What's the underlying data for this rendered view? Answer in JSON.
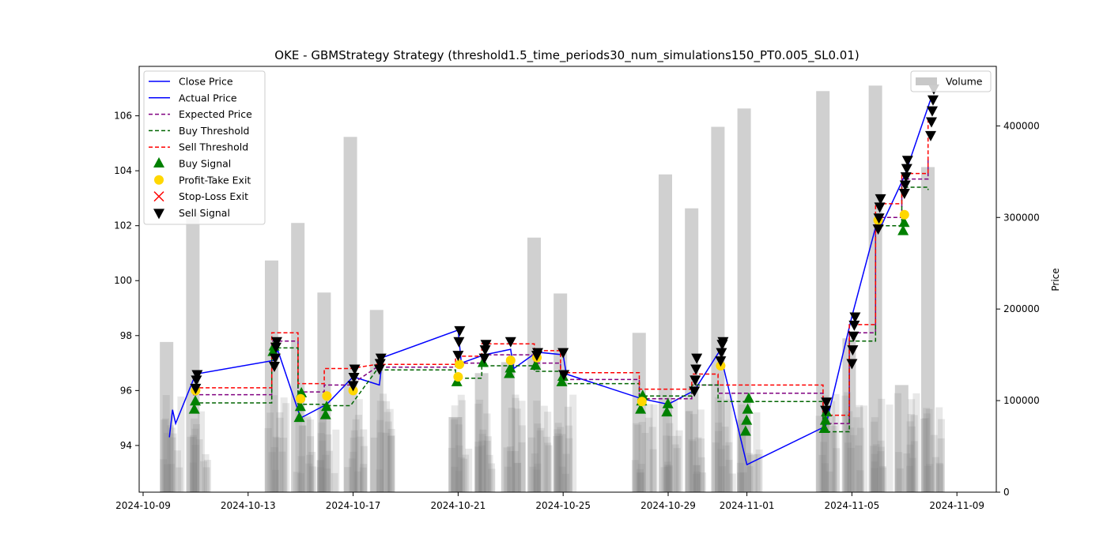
{
  "chart_data": {
    "type": "line",
    "title": "OKE - GBMStrategy Strategy (threshold1.5_time_periods30_num_simulations150_PT0.005_SL0.01)",
    "xlabel": "",
    "ylabel_left": "",
    "ylabel_right": "Price",
    "x_ticks": [
      "2024-10-09",
      "2024-10-13",
      "2024-10-17",
      "2024-10-21",
      "2024-10-25",
      "2024-10-29",
      "2024-11-01",
      "2024-11-05",
      "2024-11-09"
    ],
    "y_ticks_left": [
      "94",
      "96",
      "98",
      "100",
      "102",
      "104",
      "106"
    ],
    "y_ticks_right": [
      "0",
      "100000",
      "200000",
      "300000",
      "400000"
    ],
    "ylim_left": [
      92.3,
      107.8
    ],
    "ylim_right": [
      0,
      465000
    ],
    "xlim_days": [
      -0.15,
      32.5
    ],
    "legend_left": [
      "Close Price",
      "Actual Price",
      "Expected Price",
      "Buy Threshold",
      "Sell Threshold",
      "Buy Signal",
      "Profit-Take Exit",
      "Stop-Loss Exit",
      "Sell Signal"
    ],
    "legend_right": [
      "Volume"
    ],
    "legend_left_position": "top-left",
    "legend_right_position": "top-right",
    "grid": false,
    "colors": {
      "close": "#0000ff",
      "expected": "#800080",
      "buy_threshold": "#006400",
      "sell_threshold": "#ff0000",
      "buy_signal": "#008000",
      "profit_take": "#ffd700",
      "stop_loss": "#ff0000",
      "sell_signal": "#000000",
      "volume": "#c8c8c8",
      "volume_dense": "#808080"
    },
    "trading_days": [
      "2024-10-10",
      "2024-10-11",
      "2024-10-14",
      "2024-10-15",
      "2024-10-16",
      "2024-10-17",
      "2024-10-18",
      "2024-10-21",
      "2024-10-22",
      "2024-10-23",
      "2024-10-24",
      "2024-10-25",
      "2024-10-28",
      "2024-10-29",
      "2024-10-30",
      "2024-10-31",
      "2024-11-01",
      "2024-11-04",
      "2024-11-05",
      "2024-11-06",
      "2024-11-07",
      "2024-11-08"
    ],
    "close_price": [
      {
        "x": "2024-10-10",
        "y": 94.3
      },
      {
        "x": "2024-10-10",
        "y": 95.3
      },
      {
        "x": "2024-10-10",
        "y": 94.8
      },
      {
        "x": "2024-10-11",
        "y": 96.6
      },
      {
        "x": "2024-10-14",
        "y": 97.1
      },
      {
        "x": "2024-10-14",
        "y": 97.5
      },
      {
        "x": "2024-10-15",
        "y": 95.0
      },
      {
        "x": "2024-10-16",
        "y": 95.5
      },
      {
        "x": "2024-10-17",
        "y": 96.5
      },
      {
        "x": "2024-10-18",
        "y": 96.2
      },
      {
        "x": "2024-10-18",
        "y": 97.2
      },
      {
        "x": "2024-10-21",
        "y": 98.2
      },
      {
        "x": "2024-10-21",
        "y": 97.0
      },
      {
        "x": "2024-10-22",
        "y": 97.3
      },
      {
        "x": "2024-10-23",
        "y": 97.5
      },
      {
        "x": "2024-10-23",
        "y": 96.8
      },
      {
        "x": "2024-10-24",
        "y": 97.4
      },
      {
        "x": "2024-10-25",
        "y": 97.3
      },
      {
        "x": "2024-10-25",
        "y": 96.6
      },
      {
        "x": "2024-10-28",
        "y": 95.7
      },
      {
        "x": "2024-10-29",
        "y": 95.5
      },
      {
        "x": "2024-10-30",
        "y": 96.0
      },
      {
        "x": "2024-10-31",
        "y": 97.5
      },
      {
        "x": "2024-10-31",
        "y": 96.8
      },
      {
        "x": "2024-11-01",
        "y": 93.3
      },
      {
        "x": "2024-11-04",
        "y": 94.7
      },
      {
        "x": "2024-11-05",
        "y": 98.7
      },
      {
        "x": "2024-11-06",
        "y": 102.3
      },
      {
        "x": "2024-11-06",
        "y": 102.0
      },
      {
        "x": "2024-11-07",
        "y": 103.8
      },
      {
        "x": "2024-11-08",
        "y": 106.6
      }
    ],
    "expected_price": [
      {
        "x": "2024-10-11",
        "y": 95.85
      },
      {
        "x": "2024-10-14",
        "y": 95.85
      },
      {
        "x": "2024-10-14",
        "y": 97.8
      },
      {
        "x": "2024-10-15",
        "y": 97.8
      },
      {
        "x": "2024-10-15",
        "y": 95.95
      },
      {
        "x": "2024-10-16",
        "y": 95.95
      },
      {
        "x": "2024-10-16",
        "y": 96.2
      },
      {
        "x": "2024-10-17",
        "y": 96.2
      },
      {
        "x": "2024-10-18",
        "y": 96.85
      },
      {
        "x": "2024-10-21",
        "y": 96.85
      },
      {
        "x": "2024-10-21",
        "y": 97.0
      },
      {
        "x": "2024-10-22",
        "y": 97.0
      },
      {
        "x": "2024-10-22",
        "y": 97.3
      },
      {
        "x": "2024-10-24",
        "y": 97.3
      },
      {
        "x": "2024-10-24",
        "y": 97.0
      },
      {
        "x": "2024-10-25",
        "y": 97.0
      },
      {
        "x": "2024-10-25",
        "y": 96.4
      },
      {
        "x": "2024-10-28",
        "y": 96.4
      },
      {
        "x": "2024-10-28",
        "y": 95.7
      },
      {
        "x": "2024-10-30",
        "y": 95.7
      },
      {
        "x": "2024-10-30",
        "y": 96.2
      },
      {
        "x": "2024-10-31",
        "y": 96.2
      },
      {
        "x": "2024-10-31",
        "y": 95.9
      },
      {
        "x": "2024-11-04",
        "y": 95.9
      },
      {
        "x": "2024-11-04",
        "y": 94.8
      },
      {
        "x": "2024-11-05",
        "y": 94.8
      },
      {
        "x": "2024-11-05",
        "y": 98.1
      },
      {
        "x": "2024-11-06",
        "y": 98.1
      },
      {
        "x": "2024-11-06",
        "y": 102.3
      },
      {
        "x": "2024-11-07",
        "y": 102.3
      },
      {
        "x": "2024-11-07",
        "y": 103.7
      },
      {
        "x": "2024-11-08",
        "y": 103.7
      },
      {
        "x": "2024-11-08",
        "y": 104.5
      }
    ],
    "buy_threshold": [
      {
        "x": "2024-10-11",
        "y": 95.55
      },
      {
        "x": "2024-10-14",
        "y": 95.55
      },
      {
        "x": "2024-10-14",
        "y": 97.55
      },
      {
        "x": "2024-10-15",
        "y": 97.55
      },
      {
        "x": "2024-10-15",
        "y": 95.5
      },
      {
        "x": "2024-10-16",
        "y": 95.5
      },
      {
        "x": "2024-10-16",
        "y": 95.45
      },
      {
        "x": "2024-10-17",
        "y": 95.45
      },
      {
        "x": "2024-10-18",
        "y": 96.75
      },
      {
        "x": "2024-10-21",
        "y": 96.75
      },
      {
        "x": "2024-10-21",
        "y": 96.45
      },
      {
        "x": "2024-10-22",
        "y": 96.45
      },
      {
        "x": "2024-10-22",
        "y": 96.9
      },
      {
        "x": "2024-10-24",
        "y": 96.9
      },
      {
        "x": "2024-10-24",
        "y": 96.7
      },
      {
        "x": "2024-10-25",
        "y": 96.7
      },
      {
        "x": "2024-10-25",
        "y": 96.25
      },
      {
        "x": "2024-10-28",
        "y": 96.25
      },
      {
        "x": "2024-10-28",
        "y": 95.8
      },
      {
        "x": "2024-10-30",
        "y": 95.8
      },
      {
        "x": "2024-10-30",
        "y": 96.2
      },
      {
        "x": "2024-10-31",
        "y": 96.2
      },
      {
        "x": "2024-10-31",
        "y": 95.6
      },
      {
        "x": "2024-11-04",
        "y": 95.6
      },
      {
        "x": "2024-11-04",
        "y": 94.5
      },
      {
        "x": "2024-11-05",
        "y": 94.5
      },
      {
        "x": "2024-11-05",
        "y": 97.8
      },
      {
        "x": "2024-11-06",
        "y": 97.8
      },
      {
        "x": "2024-11-06",
        "y": 102.0
      },
      {
        "x": "2024-11-07",
        "y": 102.0
      },
      {
        "x": "2024-11-07",
        "y": 103.4
      },
      {
        "x": "2024-11-08",
        "y": 103.4
      },
      {
        "x": "2024-11-08",
        "y": 103.3
      }
    ],
    "sell_threshold": [
      {
        "x": "2024-10-11",
        "y": 96.1
      },
      {
        "x": "2024-10-14",
        "y": 96.1
      },
      {
        "x": "2024-10-14",
        "y": 98.1
      },
      {
        "x": "2024-10-15",
        "y": 98.1
      },
      {
        "x": "2024-10-15",
        "y": 96.25
      },
      {
        "x": "2024-10-16",
        "y": 96.25
      },
      {
        "x": "2024-10-16",
        "y": 96.8
      },
      {
        "x": "2024-10-17",
        "y": 96.8
      },
      {
        "x": "2024-10-18",
        "y": 96.95
      },
      {
        "x": "2024-10-21",
        "y": 96.95
      },
      {
        "x": "2024-10-21",
        "y": 97.25
      },
      {
        "x": "2024-10-22",
        "y": 97.25
      },
      {
        "x": "2024-10-22",
        "y": 97.7
      },
      {
        "x": "2024-10-24",
        "y": 97.7
      },
      {
        "x": "2024-10-24",
        "y": 97.45
      },
      {
        "x": "2024-10-25",
        "y": 97.45
      },
      {
        "x": "2024-10-25",
        "y": 96.65
      },
      {
        "x": "2024-10-28",
        "y": 96.65
      },
      {
        "x": "2024-10-28",
        "y": 96.05
      },
      {
        "x": "2024-10-30",
        "y": 96.05
      },
      {
        "x": "2024-10-30",
        "y": 96.6
      },
      {
        "x": "2024-10-31",
        "y": 96.6
      },
      {
        "x": "2024-10-31",
        "y": 96.2
      },
      {
        "x": "2024-11-04",
        "y": 96.2
      },
      {
        "x": "2024-11-04",
        "y": 95.1
      },
      {
        "x": "2024-11-05",
        "y": 95.1
      },
      {
        "x": "2024-11-05",
        "y": 98.4
      },
      {
        "x": "2024-11-06",
        "y": 98.4
      },
      {
        "x": "2024-11-06",
        "y": 102.8
      },
      {
        "x": "2024-11-07",
        "y": 102.8
      },
      {
        "x": "2024-11-07",
        "y": 103.9
      },
      {
        "x": "2024-11-08",
        "y": 103.9
      },
      {
        "x": "2024-11-08",
        "y": 105.9
      }
    ],
    "buy_signals": [
      {
        "x": "2024-10-11",
        "y": 95.3
      },
      {
        "x": "2024-10-11",
        "y": 95.6
      },
      {
        "x": "2024-10-14",
        "y": 97.4
      },
      {
        "x": "2024-10-14",
        "y": 97.6
      },
      {
        "x": "2024-10-15",
        "y": 95.0
      },
      {
        "x": "2024-10-15",
        "y": 95.4
      },
      {
        "x": "2024-10-15",
        "y": 95.9
      },
      {
        "x": "2024-10-16",
        "y": 95.1
      },
      {
        "x": "2024-10-16",
        "y": 95.4
      },
      {
        "x": "2024-10-21",
        "y": 96.3
      },
      {
        "x": "2024-10-22",
        "y": 97.0
      },
      {
        "x": "2024-10-23",
        "y": 96.6
      },
      {
        "x": "2024-10-23",
        "y": 96.8
      },
      {
        "x": "2024-10-24",
        "y": 96.9
      },
      {
        "x": "2024-10-25",
        "y": 96.3
      },
      {
        "x": "2024-10-25",
        "y": 96.5
      },
      {
        "x": "2024-10-28",
        "y": 95.3
      },
      {
        "x": "2024-10-28",
        "y": 95.6
      },
      {
        "x": "2024-10-28",
        "y": 95.8
      },
      {
        "x": "2024-10-29",
        "y": 95.2
      },
      {
        "x": "2024-10-29",
        "y": 95.5
      },
      {
        "x": "2024-11-01",
        "y": 94.5
      },
      {
        "x": "2024-11-01",
        "y": 94.9
      },
      {
        "x": "2024-11-01",
        "y": 95.3
      },
      {
        "x": "2024-11-01",
        "y": 95.7
      },
      {
        "x": "2024-11-04",
        "y": 94.6
      },
      {
        "x": "2024-11-04",
        "y": 94.9
      },
      {
        "x": "2024-11-04",
        "y": 95.2
      },
      {
        "x": "2024-11-07",
        "y": 101.8
      },
      {
        "x": "2024-11-07",
        "y": 102.1
      }
    ],
    "profit_take_exits": [
      {
        "x": "2024-10-11",
        "y": 96.0
      },
      {
        "x": "2024-10-15",
        "y": 95.7
      },
      {
        "x": "2024-10-16",
        "y": 95.8
      },
      {
        "x": "2024-10-17",
        "y": 96.0
      },
      {
        "x": "2024-10-21",
        "y": 96.5
      },
      {
        "x": "2024-10-21",
        "y": 96.95
      },
      {
        "x": "2024-10-23",
        "y": 97.1
      },
      {
        "x": "2024-10-24",
        "y": 97.2
      },
      {
        "x": "2024-10-28",
        "y": 95.6
      },
      {
        "x": "2024-10-31",
        "y": 96.9
      },
      {
        "x": "2024-11-06",
        "y": 102.2
      },
      {
        "x": "2024-11-07",
        "y": 102.4
      }
    ],
    "stop_loss_exits": [],
    "sell_signals": [
      {
        "x": "2024-10-11",
        "y": 96.1
      },
      {
        "x": "2024-10-11",
        "y": 96.4
      },
      {
        "x": "2024-10-11",
        "y": 96.6
      },
      {
        "x": "2024-10-14",
        "y": 96.9
      },
      {
        "x": "2024-10-14",
        "y": 97.2
      },
      {
        "x": "2024-10-14",
        "y": 97.6
      },
      {
        "x": "2024-10-14",
        "y": 97.8
      },
      {
        "x": "2024-10-17",
        "y": 96.2
      },
      {
        "x": "2024-10-17",
        "y": 96.5
      },
      {
        "x": "2024-10-17",
        "y": 96.8
      },
      {
        "x": "2024-10-18",
        "y": 96.8
      },
      {
        "x": "2024-10-18",
        "y": 97.0
      },
      {
        "x": "2024-10-18",
        "y": 97.2
      },
      {
        "x": "2024-10-21",
        "y": 97.3
      },
      {
        "x": "2024-10-21",
        "y": 97.8
      },
      {
        "x": "2024-10-21",
        "y": 98.2
      },
      {
        "x": "2024-10-22",
        "y": 97.2
      },
      {
        "x": "2024-10-22",
        "y": 97.5
      },
      {
        "x": "2024-10-22",
        "y": 97.7
      },
      {
        "x": "2024-10-23",
        "y": 97.8
      },
      {
        "x": "2024-10-24",
        "y": 97.3
      },
      {
        "x": "2024-10-24",
        "y": 97.4
      },
      {
        "x": "2024-10-25",
        "y": 97.4
      },
      {
        "x": "2024-10-25",
        "y": 96.6
      },
      {
        "x": "2024-10-30",
        "y": 96.0
      },
      {
        "x": "2024-10-30",
        "y": 96.4
      },
      {
        "x": "2024-10-30",
        "y": 96.8
      },
      {
        "x": "2024-10-30",
        "y": 97.2
      },
      {
        "x": "2024-10-31",
        "y": 97.1
      },
      {
        "x": "2024-10-31",
        "y": 97.4
      },
      {
        "x": "2024-10-31",
        "y": 97.7
      },
      {
        "x": "2024-10-31",
        "y": 97.8
      },
      {
        "x": "2024-11-04",
        "y": 95.3
      },
      {
        "x": "2024-11-04",
        "y": 95.6
      },
      {
        "x": "2024-11-05",
        "y": 97.0
      },
      {
        "x": "2024-11-05",
        "y": 97.5
      },
      {
        "x": "2024-11-05",
        "y": 98.0
      },
      {
        "x": "2024-11-05",
        "y": 98.4
      },
      {
        "x": "2024-11-05",
        "y": 98.7
      },
      {
        "x": "2024-11-06",
        "y": 101.9
      },
      {
        "x": "2024-11-06",
        "y": 102.3
      },
      {
        "x": "2024-11-06",
        "y": 102.7
      },
      {
        "x": "2024-11-06",
        "y": 103.0
      },
      {
        "x": "2024-11-07",
        "y": 103.2
      },
      {
        "x": "2024-11-07",
        "y": 103.5
      },
      {
        "x": "2024-11-07",
        "y": 103.8
      },
      {
        "x": "2024-11-07",
        "y": 104.1
      },
      {
        "x": "2024-11-07",
        "y": 104.4
      },
      {
        "x": "2024-11-08",
        "y": 105.3
      },
      {
        "x": "2024-11-08",
        "y": 105.8
      },
      {
        "x": "2024-11-08",
        "y": 106.2
      },
      {
        "x": "2024-11-08",
        "y": 106.6
      },
      {
        "x": "2024-11-08",
        "y": 107.0
      }
    ],
    "volume_tall": [
      {
        "x": "2024-10-10",
        "v": 164000
      },
      {
        "x": "2024-10-11",
        "v": 305000
      },
      {
        "x": "2024-10-14",
        "v": 253000
      },
      {
        "x": "2024-10-15",
        "v": 294000
      },
      {
        "x": "2024-10-16",
        "v": 218000
      },
      {
        "x": "2024-10-17",
        "v": 388000
      },
      {
        "x": "2024-10-18",
        "v": 199000
      },
      {
        "x": "2024-10-21",
        "v": 82000
      },
      {
        "x": "2024-10-22",
        "v": 130000
      },
      {
        "x": "2024-10-23",
        "v": 142000
      },
      {
        "x": "2024-10-24",
        "v": 278000
      },
      {
        "x": "2024-10-25",
        "v": 217000
      },
      {
        "x": "2024-10-28",
        "v": 174000
      },
      {
        "x": "2024-10-29",
        "v": 347000
      },
      {
        "x": "2024-10-30",
        "v": 310000
      },
      {
        "x": "2024-10-31",
        "v": 399000
      },
      {
        "x": "2024-11-01",
        "v": 419000
      },
      {
        "x": "2024-11-04",
        "v": 438000
      },
      {
        "x": "2024-11-05",
        "v": 168000
      },
      {
        "x": "2024-11-06",
        "v": 444000
      },
      {
        "x": "2024-11-07",
        "v": 117000
      },
      {
        "x": "2024-11-08",
        "v": 355000
      }
    ]
  }
}
